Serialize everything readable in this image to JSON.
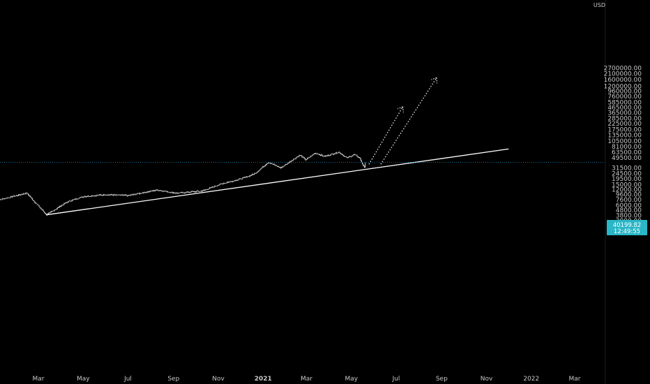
{
  "chart_data": {
    "type": "candlestick",
    "currency": "USD",
    "scale": "log",
    "grid": false,
    "y_ticks": [
      "2700000.00",
      "2100000.00",
      "1600000.00",
      "1200000.00",
      "960000.00",
      "760000.00",
      "585000.00",
      "465000.00",
      "365000.00",
      "285000.00",
      "225000.00",
      "175000.00",
      "135000.00",
      "105000.00",
      "81000.00",
      "63500.00",
      "49500.00",
      "31500.00",
      "24500.00",
      "19500.00",
      "15000.00",
      "12000.00",
      "9600.00",
      "7600.00",
      "6000.00",
      "4800.00",
      "3800.00",
      "3000.00"
    ],
    "x_ticks": [
      "Mar",
      "May",
      "Jul",
      "Sep",
      "Nov",
      "2021",
      "Mar",
      "May",
      "Jul",
      "Sep",
      "Nov",
      "2022",
      "Mar"
    ],
    "last_price": "40199.82",
    "countdown": "12:49:55",
    "anchor_points": [
      {
        "date": "2020-01-01",
        "price": 7200
      },
      {
        "date": "2020-02-14",
        "price": 10300
      },
      {
        "date": "2020-03-12",
        "price": 3900
      },
      {
        "date": "2020-04-10",
        "price": 7000
      },
      {
        "date": "2020-05-01",
        "price": 8800
      },
      {
        "date": "2020-06-01",
        "price": 9600
      },
      {
        "date": "2020-07-01",
        "price": 9200
      },
      {
        "date": "2020-08-10",
        "price": 11800
      },
      {
        "date": "2020-09-05",
        "price": 10200
      },
      {
        "date": "2020-10-10",
        "price": 11300
      },
      {
        "date": "2020-11-05",
        "price": 15500
      },
      {
        "date": "2020-12-01",
        "price": 19200
      },
      {
        "date": "2020-12-20",
        "price": 24000
      },
      {
        "date": "2021-01-08",
        "price": 40500
      },
      {
        "date": "2021-01-25",
        "price": 31500
      },
      {
        "date": "2021-02-20",
        "price": 56000
      },
      {
        "date": "2021-02-28",
        "price": 45000
      },
      {
        "date": "2021-03-13",
        "price": 61000
      },
      {
        "date": "2021-03-25",
        "price": 52500
      },
      {
        "date": "2021-04-14",
        "price": 63500
      },
      {
        "date": "2021-04-25",
        "price": 49000
      },
      {
        "date": "2021-05-05",
        "price": 57000
      },
      {
        "date": "2021-05-12",
        "price": 49500
      },
      {
        "date": "2021-05-19",
        "price": 31500
      },
      {
        "date": "2021-05-20",
        "price": 40199.82
      }
    ],
    "trendline": {
      "from": {
        "date": "2020-03-12",
        "price": 3900
      },
      "to": {
        "date": "2021-12-01",
        "price": 73000
      }
    },
    "projections": [
      {
        "from": {
          "date": "2021-05-25",
          "price": 37000
        },
        "to": {
          "date": "2021-07-10",
          "price": 480000
        }
      },
      {
        "from": {
          "date": "2021-06-10",
          "price": 37000
        },
        "to": {
          "date": "2021-08-25",
          "price": 1750000
        }
      }
    ]
  },
  "colors": {
    "background": "#000000",
    "axis_text": "#c8c8c8",
    "candle": "#e6e6e6",
    "trendline": "#ffffff",
    "price_line": "#2196c8",
    "price_label_bg": "#29b6c6"
  }
}
